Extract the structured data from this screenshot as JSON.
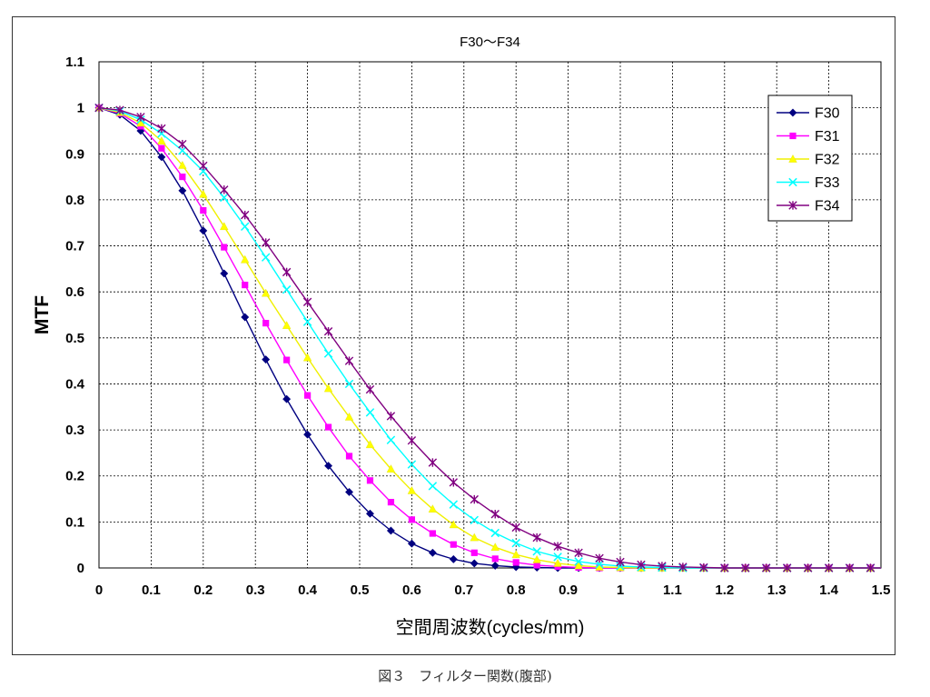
{
  "chart_data": {
    "type": "line",
    "title": "F30〜F34",
    "xlabel": "空間周波数(cycles/mm)",
    "ylabel": "MTF",
    "xlim": [
      0,
      1.5
    ],
    "ylim": [
      0,
      1.1
    ],
    "grid": true,
    "legend_position": "top-right",
    "x": [
      0,
      0.04,
      0.08,
      0.12,
      0.16,
      0.2,
      0.24,
      0.28,
      0.32,
      0.36,
      0.4,
      0.44,
      0.48,
      0.52,
      0.56,
      0.6,
      0.64,
      0.68,
      0.72,
      0.76,
      0.8,
      0.84,
      0.88,
      0.92,
      0.96,
      1.0,
      1.04,
      1.08,
      1.12,
      1.16,
      1.2,
      1.24,
      1.28,
      1.32,
      1.36,
      1.4,
      1.44,
      1.48
    ],
    "series": [
      {
        "name": "F30",
        "color": "#000080",
        "marker": "diamond",
        "values": [
          1.0,
          0.985,
          0.95,
          0.893,
          0.82,
          0.733,
          0.64,
          0.545,
          0.453,
          0.367,
          0.29,
          0.222,
          0.165,
          0.118,
          0.081,
          0.053,
          0.033,
          0.019,
          0.01,
          0.005,
          0.002,
          0.001,
          0.0,
          0.0,
          0.0,
          0.0,
          0.0,
          0.0,
          0.0,
          0.0,
          0.0,
          0.0,
          0.0,
          0.0,
          0.0,
          0.0,
          0.0,
          0.0
        ]
      },
      {
        "name": "F31",
        "color": "#ff00ff",
        "marker": "square",
        "values": [
          1.0,
          0.988,
          0.96,
          0.912,
          0.85,
          0.777,
          0.697,
          0.615,
          0.532,
          0.452,
          0.375,
          0.306,
          0.243,
          0.19,
          0.143,
          0.105,
          0.075,
          0.051,
          0.033,
          0.02,
          0.012,
          0.006,
          0.003,
          0.001,
          0.0,
          0.0,
          0.0,
          0.0,
          0.0,
          0.0,
          0.0,
          0.0,
          0.0,
          0.0,
          0.0,
          0.0,
          0.0,
          0.0
        ]
      },
      {
        "name": "F32",
        "color": "#ffff00",
        "marker": "triangle",
        "values": [
          1.0,
          0.99,
          0.967,
          0.928,
          0.875,
          0.812,
          0.742,
          0.67,
          0.597,
          0.527,
          0.457,
          0.39,
          0.328,
          0.268,
          0.215,
          0.168,
          0.128,
          0.094,
          0.066,
          0.045,
          0.029,
          0.018,
          0.01,
          0.005,
          0.002,
          0.001,
          0.0,
          0.0,
          0.0,
          0.0,
          0.0,
          0.0,
          0.0,
          0.0,
          0.0,
          0.0,
          0.0,
          0.0
        ]
      },
      {
        "name": "F33",
        "color": "#00ffff",
        "marker": "x",
        "values": [
          1.0,
          0.993,
          0.974,
          0.944,
          0.907,
          0.862,
          0.805,
          0.742,
          0.675,
          0.605,
          0.535,
          0.466,
          0.4,
          0.338,
          0.278,
          0.225,
          0.178,
          0.138,
          0.104,
          0.076,
          0.054,
          0.036,
          0.024,
          0.014,
          0.008,
          0.004,
          0.002,
          0.001,
          0.0,
          0.0,
          0.0,
          0.0,
          0.0,
          0.0,
          0.0,
          0.0,
          0.0,
          0.0
        ]
      },
      {
        "name": "F34",
        "color": "#800080",
        "marker": "star",
        "values": [
          1.0,
          0.995,
          0.98,
          0.955,
          0.921,
          0.874,
          0.822,
          0.767,
          0.707,
          0.643,
          0.578,
          0.514,
          0.45,
          0.388,
          0.33,
          0.277,
          0.229,
          0.186,
          0.149,
          0.117,
          0.088,
          0.066,
          0.047,
          0.033,
          0.021,
          0.013,
          0.007,
          0.004,
          0.002,
          0.001,
          0.0,
          0.0,
          0.0,
          0.0,
          0.0,
          0.0,
          0.0,
          0.0
        ]
      }
    ],
    "xticks": [
      "0",
      "0.1",
      "0.2",
      "0.3",
      "0.4",
      "0.5",
      "0.6",
      "0.7",
      "0.8",
      "0.9",
      "1",
      "1.1",
      "1.2",
      "1.3",
      "1.4",
      "1.5"
    ],
    "yticks": [
      "0",
      "0.1",
      "0.2",
      "0.3",
      "0.4",
      "0.5",
      "0.6",
      "0.7",
      "0.8",
      "0.9",
      "1",
      "1.1"
    ]
  },
  "caption": "図３　フィルター関数(腹部)"
}
